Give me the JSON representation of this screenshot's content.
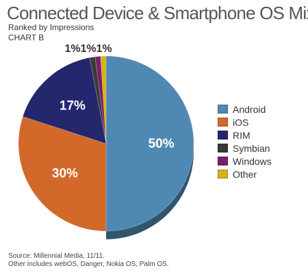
{
  "header": {
    "title": "Connected Device & Smartphone OS Mix",
    "subtitle": "Ranked by Impressions",
    "chart_id": "CHART B"
  },
  "footer": {
    "source": "Source: Millennial Media, 11/11.",
    "note": "Other includes webOS, Danger, Nokia OS, Palm OS."
  },
  "chart_data": {
    "type": "pie",
    "title": "Connected Device & Smartphone OS Mix",
    "subtitle": "Ranked by Impressions",
    "categories": [
      "Android",
      "iOS",
      "RIM",
      "Symbian",
      "Windows",
      "Other"
    ],
    "values": [
      50,
      30,
      17,
      1,
      1,
      1
    ],
    "labels": [
      "50%",
      "30%",
      "17%",
      "1%",
      "1%",
      "1%"
    ],
    "colors": [
      "#4f89b3",
      "#d2692a",
      "#24266e",
      "#3a3a3a",
      "#7a1f6a",
      "#d4b41a"
    ],
    "legend_position": "right"
  }
}
